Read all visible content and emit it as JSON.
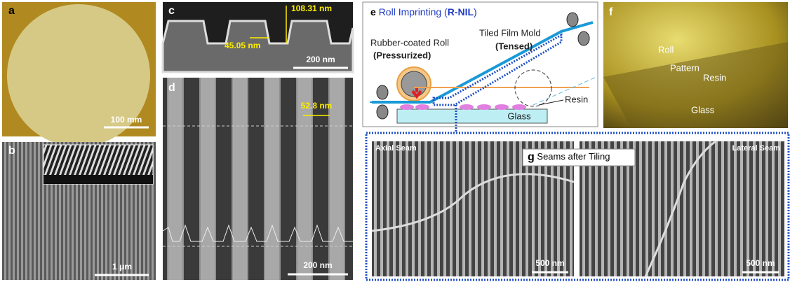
{
  "panels": {
    "a": {
      "label": "a",
      "scale_bar": "100 mm"
    },
    "b": {
      "label": "b",
      "scale_bar": "1 μm"
    },
    "c": {
      "label": "c",
      "height": "108.31 nm",
      "width": "45.05 nm",
      "scale_bar": "200 nm"
    },
    "d": {
      "label": "d",
      "linewidth": "52.8 nm",
      "scale_bar": "200 nm"
    },
    "e": {
      "label": "e",
      "title_prefix": "Roll Imprinting (",
      "title_emphasis": "R-NIL",
      "title_suffix": ")",
      "roll_label": "Rubber-coated Roll",
      "roll_state": "(Pressurized)",
      "mold_label": "Tiled Film Mold",
      "mold_state": "(Tensed)",
      "resin": "Resin",
      "glass": "Glass"
    },
    "f": {
      "label": "f",
      "roll": "Roll",
      "pattern": "Pattern",
      "resin": "Resin",
      "glass": "Glass"
    },
    "g": {
      "label": "g",
      "title": "Seams after Tiling",
      "left_title": "Axial Seam",
      "right_title": "Lateral Seam",
      "left_scale_bar": "500 nm",
      "right_scale_bar": "500 nm"
    }
  }
}
